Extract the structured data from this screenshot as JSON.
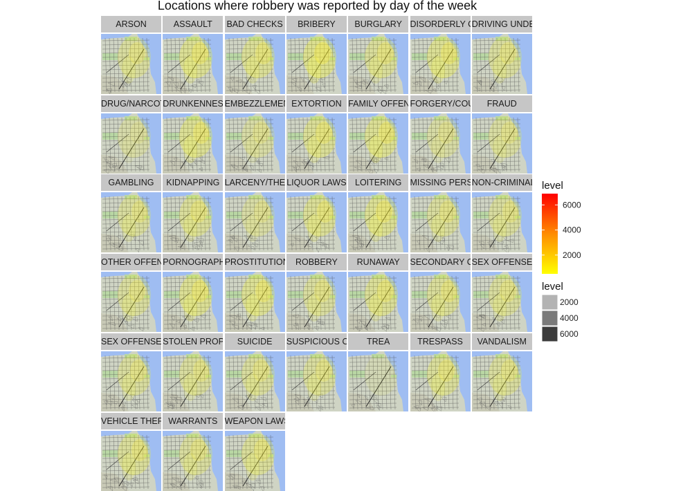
{
  "chart_data": {
    "type": "heatmap",
    "title": "Locations where robbery was reported by day of the week",
    "facets": [
      {
        "label": "ARSON",
        "intensity": 0.45
      },
      {
        "label": "ASSAULT",
        "intensity": 0.6
      },
      {
        "label": "BAD CHECKS",
        "intensity": 0.55
      },
      {
        "label": "BRIBERY",
        "intensity": 0.7
      },
      {
        "label": "BURGLARY",
        "intensity": 0.5
      },
      {
        "label": "DISORDERLY CONDUCT",
        "intensity": 0.6
      },
      {
        "label": "DRIVING UNDER THE INFLUENCE",
        "intensity": 0.45
      },
      {
        "label": "DRUG/NARCOTIC",
        "intensity": 0.25
      },
      {
        "label": "DRUNKENNESS",
        "intensity": 0.6
      },
      {
        "label": "EMBEZZLEMENT",
        "intensity": 0.35
      },
      {
        "label": "EXTORTION",
        "intensity": 0.55
      },
      {
        "label": "FAMILY OFFENSES",
        "intensity": 0.6
      },
      {
        "label": "FORGERY/COUNTERFEITING",
        "intensity": 0.35
      },
      {
        "label": "FRAUD",
        "intensity": 0.4
      },
      {
        "label": "GAMBLING",
        "intensity": 0.45
      },
      {
        "label": "KIDNAPPING",
        "intensity": 0.5
      },
      {
        "label": "LARCENY/THEFT",
        "intensity": 0.35
      },
      {
        "label": "LIQUOR LAWS",
        "intensity": 0.55
      },
      {
        "label": "LOITERING",
        "intensity": 0.6
      },
      {
        "label": "MISSING PERSON",
        "intensity": 0.45
      },
      {
        "label": "NON-CRIMINAL",
        "intensity": 0.45
      },
      {
        "label": "OTHER OFFENSES",
        "intensity": 0.45
      },
      {
        "label": "PORNOGRAPHY/OBSCENE MAT",
        "intensity": 0.6
      },
      {
        "label": "PROSTITUTION",
        "intensity": 0.6
      },
      {
        "label": "ROBBERY",
        "intensity": 0.45
      },
      {
        "label": "RUNAWAY",
        "intensity": 0.55
      },
      {
        "label": "SECONDARY CODES",
        "intensity": 0.5
      },
      {
        "label": "SEX OFFENSES, FORCIBLE",
        "intensity": 0.45
      },
      {
        "label": "SEX OFFENSES, NON FORCIBLE",
        "intensity": 0.45
      },
      {
        "label": "STOLEN PROPERTY",
        "intensity": 0.45
      },
      {
        "label": "SUICIDE",
        "intensity": 0.45
      },
      {
        "label": "SUSPICIOUS OCC",
        "intensity": 0.45
      },
      {
        "label": "TREA",
        "intensity": 0.05
      },
      {
        "label": "TRESPASS",
        "intensity": 0.5
      },
      {
        "label": "VANDALISM",
        "intensity": 0.45
      },
      {
        "label": "VEHICLE THEFT",
        "intensity": 0.5
      },
      {
        "label": "WARRANTS",
        "intensity": 0.45
      },
      {
        "label": "WEAPON LAWS",
        "intensity": 0.5
      }
    ],
    "legend_fill": {
      "title": "level",
      "ticks": [
        2000,
        4000,
        6000
      ],
      "colors": [
        "#ffff00",
        "#ff8c00",
        "#ff0000"
      ]
    },
    "legend_alpha": {
      "title": "level",
      "entries": [
        {
          "label": "2000",
          "color": "#b3b3b3"
        },
        {
          "label": "4000",
          "color": "#7a7a7a"
        },
        {
          "label": "6000",
          "color": "#3c3c3c"
        }
      ]
    }
  }
}
